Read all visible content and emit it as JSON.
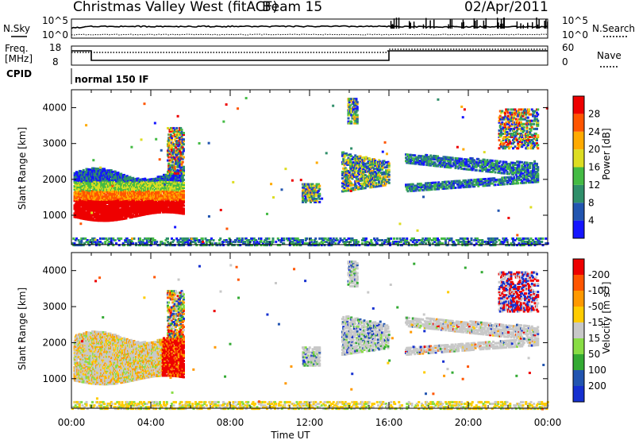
{
  "header": {
    "station": "Christmas Valley West (fitACF)",
    "beam": "Beam 15",
    "date": "02/Apr/2011"
  },
  "noise_panel": {
    "left_label": "N.Sky",
    "right_label": "N.Search",
    "left_ticks": [
      "10^5",
      "10^0"
    ],
    "right_ticks": [
      "10^5",
      "10^0"
    ]
  },
  "freq_panel": {
    "left_label": "Freq.",
    "left_unit": "[MHz]",
    "right_label": "Nave",
    "left_ticks": [
      "18",
      "8"
    ],
    "right_ticks": [
      "60",
      "0"
    ]
  },
  "cpid": {
    "label": "CPID",
    "mode": "normal 150 IF"
  },
  "time_axis": {
    "label": "Time UT",
    "ticks": [
      "00:00",
      "04:00",
      "08:00",
      "12:00",
      "16:00",
      "20:00",
      "00:00"
    ]
  },
  "chart_data": [
    {
      "type": "heatmap",
      "name": "Power",
      "xlabel": "Time UT",
      "ylabel": "Slant Range [km]",
      "xlim": [
        0,
        24
      ],
      "ylim": [
        180,
        4500
      ],
      "y_ticks": [
        1000,
        2000,
        3000,
        4000
      ],
      "colorbar": {
        "label": "Power [dB]",
        "levels": [
          "4",
          "8",
          "12",
          "16",
          "20",
          "24",
          "28"
        ],
        "colors": [
          "#1515ff",
          "#2255b0",
          "#2f8f6a",
          "#44bb44",
          "#dddd22",
          "#ffaa00",
          "#ff5500",
          "#ee0000"
        ]
      },
      "scatter_regions": [
        {
          "t": [
            0.1,
            5.6
          ],
          "r": [
            900,
            2400
          ],
          "note": "strong echoes red/orange"
        },
        {
          "t": [
            11.5,
            12.5
          ],
          "r": [
            1400,
            1900
          ]
        },
        {
          "t": [
            13.6,
            16.0
          ],
          "r": [
            1700,
            2800
          ]
        },
        {
          "t": [
            16.8,
            23.5
          ],
          "r": [
            1700,
            2800
          ]
        },
        {
          "t": [
            21.5,
            23.5
          ],
          "r": [
            2800,
            4000
          ]
        },
        {
          "t": [
            0.0,
            24.0
          ],
          "r": [
            200,
            450
          ],
          "note": "ground/near-range band"
        }
      ]
    },
    {
      "type": "heatmap",
      "name": "Velocity",
      "xlabel": "Time UT",
      "ylabel": "Slant Range [km]",
      "xlim": [
        0,
        24
      ],
      "ylim": [
        180,
        4500
      ],
      "y_ticks": [
        1000,
        2000,
        3000,
        4000
      ],
      "colorbar": {
        "label": "Velocity [m s^-1]",
        "levels": [
          "200",
          "100",
          "50",
          "15",
          "-15",
          "-50",
          "-100",
          "-200"
        ],
        "colors": [
          "#1530d0",
          "#2255b0",
          "#33aa33",
          "#88dd44",
          "#c8c8c8",
          "#ffcc00",
          "#ff9900",
          "#ff5500",
          "#ee0000"
        ]
      }
    }
  ]
}
